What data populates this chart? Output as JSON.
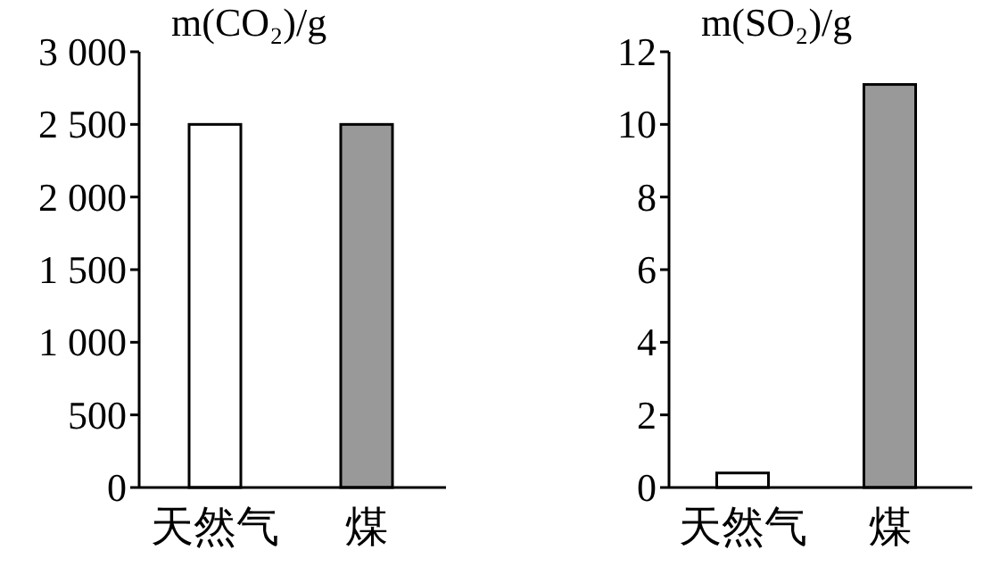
{
  "chart_data": [
    {
      "type": "bar",
      "title": "m(CO₂)/g",
      "categories": [
        "天然气",
        "煤"
      ],
      "values": [
        2500,
        2500
      ],
      "colors": [
        "#ffffff",
        "#999999"
      ],
      "ylim": [
        0,
        3000
      ],
      "yticks": [
        0,
        500,
        {
          "value": 1000,
          "label": "1 000"
        },
        {
          "value": 1500,
          "label": "1 500"
        },
        {
          "value": 2000,
          "label": "2 000"
        },
        {
          "value": 2500,
          "label": "2 500"
        },
        {
          "value": 3000,
          "label": "3 000"
        }
      ],
      "grid": false
    },
    {
      "type": "bar",
      "title": "m(SO₂)/g",
      "categories": [
        "天然气",
        "煤"
      ],
      "values": [
        0.4,
        11.1
      ],
      "colors": [
        "#ffffff",
        "#999999"
      ],
      "ylim": [
        0,
        12
      ],
      "yticks": [
        0,
        2,
        4,
        6,
        8,
        10,
        12
      ],
      "grid": false
    }
  ]
}
